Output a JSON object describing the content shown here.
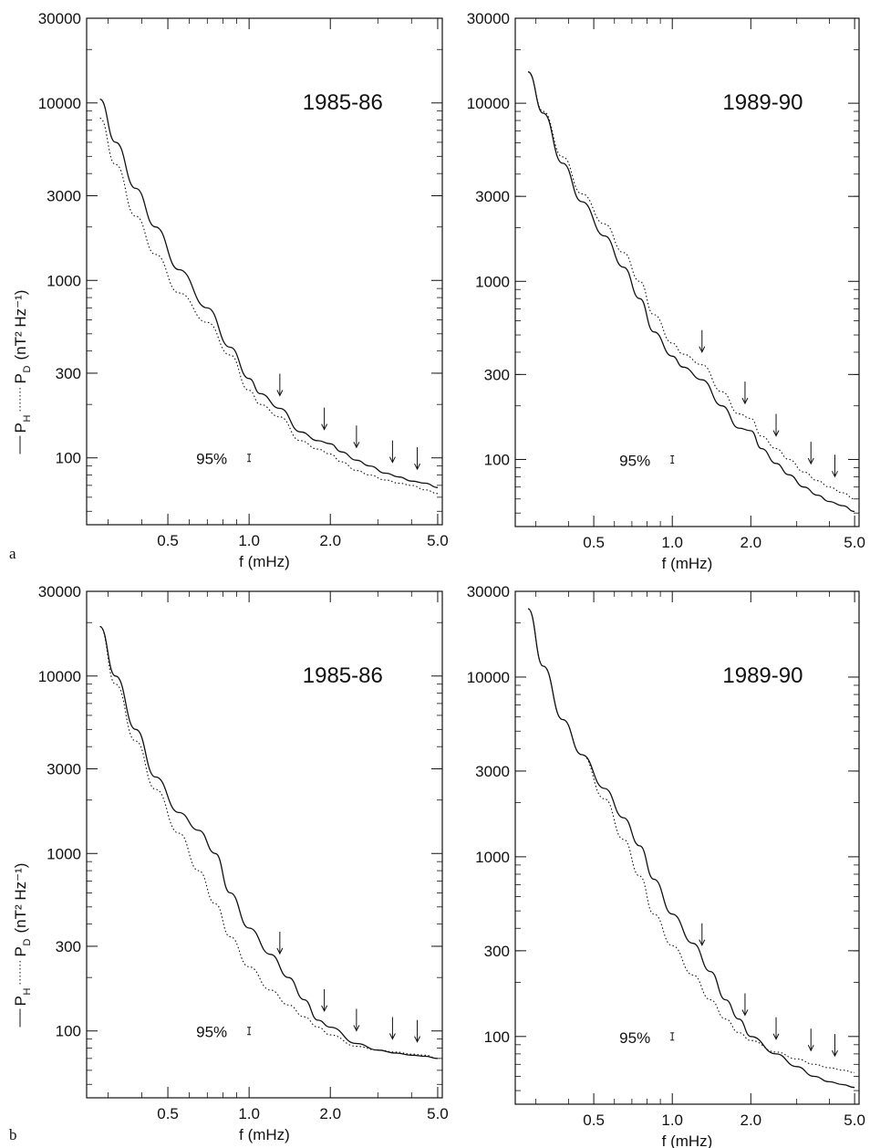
{
  "panel_labels": [
    "a",
    "b"
  ],
  "confidence_label": "95%",
  "chart_data": [
    {
      "type": "line",
      "title": "1985-86",
      "xlabel": "f (mHz)",
      "ylabel": {
        "h": "P",
        "h_sub": "H",
        "d": "P",
        "d_sub": "D",
        "unit": "(nT² Hz⁻¹)"
      },
      "xscale": "log",
      "yscale": "log",
      "xlim": [
        0.25,
        5.2
      ],
      "ylim": [
        42,
        30000
      ],
      "xticks": [
        0.5,
        1.0,
        2.0,
        5.0
      ],
      "xtick_labels": [
        "0.5",
        "1.0",
        "2.0",
        "5.0"
      ],
      "yticks": [
        100,
        300,
        1000,
        3000,
        10000,
        30000
      ],
      "ytick_labels": [
        "100",
        "300",
        "1000",
        "3000",
        "10000",
        "30000"
      ],
      "series": [
        {
          "style": "solid",
          "x": [
            0.28,
            0.32,
            0.38,
            0.45,
            0.55,
            0.7,
            0.85,
            1.0,
            1.1,
            1.3,
            1.55,
            1.8,
            2.0,
            2.2,
            2.5,
            2.8,
            3.2,
            3.6,
            4.0,
            4.5,
            5.0
          ],
          "y": [
            10500,
            6000,
            3300,
            2000,
            1150,
            700,
            420,
            280,
            230,
            190,
            140,
            125,
            120,
            108,
            97,
            90,
            82,
            78,
            74,
            72,
            68
          ]
        },
        {
          "style": "dotted",
          "x": [
            0.28,
            0.32,
            0.38,
            0.45,
            0.55,
            0.7,
            0.85,
            1.0,
            1.1,
            1.3,
            1.55,
            1.8,
            2.0,
            2.2,
            2.5,
            2.8,
            3.2,
            3.6,
            4.0,
            4.5,
            5.0
          ],
          "y": [
            8200,
            4500,
            2300,
            1400,
            850,
            580,
            380,
            240,
            200,
            170,
            125,
            112,
            105,
            95,
            85,
            80,
            75,
            72,
            70,
            66,
            63
          ]
        }
      ],
      "arrows_x": [
        1.3,
        1.9,
        2.5,
        3.4,
        4.2
      ],
      "ci": {
        "x": 1.0,
        "y": 100
      }
    },
    {
      "type": "line",
      "title": "1989-90",
      "xlabel": "f (mHz)",
      "xscale": "log",
      "yscale": "log",
      "xlim": [
        0.25,
        5.2
      ],
      "ylim": [
        42,
        30000
      ],
      "xticks": [
        0.5,
        1.0,
        2.0,
        5.0
      ],
      "xtick_labels": [
        "0.5",
        "1.0",
        "2.0",
        "5.0"
      ],
      "yticks": [
        100,
        300,
        1000,
        3000,
        10000,
        30000
      ],
      "ytick_labels": [
        "100",
        "300",
        "1000",
        "3000",
        "10000",
        "30000"
      ],
      "series": [
        {
          "style": "solid",
          "x": [
            0.28,
            0.32,
            0.38,
            0.45,
            0.55,
            0.65,
            0.75,
            0.85,
            1.0,
            1.1,
            1.3,
            1.55,
            1.8,
            2.0,
            2.2,
            2.5,
            2.8,
            3.2,
            3.6,
            4.0,
            4.5,
            5.0
          ],
          "y": [
            15000,
            8800,
            4600,
            2800,
            1800,
            1200,
            800,
            520,
            380,
            330,
            280,
            200,
            150,
            145,
            115,
            95,
            82,
            70,
            63,
            58,
            55,
            51
          ]
        },
        {
          "style": "dotted",
          "x": [
            0.28,
            0.32,
            0.38,
            0.45,
            0.55,
            0.65,
            0.75,
            0.85,
            1.0,
            1.1,
            1.3,
            1.55,
            1.8,
            2.0,
            2.2,
            2.5,
            2.8,
            3.2,
            3.6,
            4.0,
            4.5,
            5.0
          ],
          "y": [
            15000,
            9000,
            5000,
            3100,
            2100,
            1450,
            1000,
            650,
            450,
            390,
            340,
            240,
            180,
            170,
            135,
            115,
            100,
            85,
            76,
            70,
            65,
            60
          ]
        }
      ],
      "arrows_x": [
        1.3,
        1.9,
        2.5,
        3.4,
        4.2
      ],
      "ci": {
        "x": 1.0,
        "y": 100
      }
    },
    {
      "type": "line",
      "title": "1985-86",
      "xlabel": "f (mHz)",
      "ylabel": {
        "h": "P",
        "h_sub": "H",
        "d": "P",
        "d_sub": "D",
        "unit": "(nT² Hz⁻¹)"
      },
      "xscale": "log",
      "yscale": "log",
      "xlim": [
        0.25,
        5.2
      ],
      "ylim": [
        42,
        30000
      ],
      "xticks": [
        0.5,
        1.0,
        2.0,
        5.0
      ],
      "xtick_labels": [
        "0.5",
        "1.0",
        "2.0",
        "5.0"
      ],
      "yticks": [
        100,
        300,
        1000,
        3000,
        10000,
        30000
      ],
      "ytick_labels": [
        "100",
        "300",
        "1000",
        "3000",
        "10000",
        "30000"
      ],
      "series": [
        {
          "style": "solid",
          "x": [
            0.28,
            0.32,
            0.38,
            0.45,
            0.55,
            0.65,
            0.75,
            0.85,
            1.0,
            1.2,
            1.4,
            1.6,
            1.8,
            2.0,
            2.5,
            3.0,
            3.5,
            4.0,
            4.5,
            5.0
          ],
          "y": [
            19000,
            10000,
            5000,
            2700,
            1700,
            1350,
            1000,
            600,
            380,
            270,
            200,
            150,
            115,
            105,
            85,
            78,
            75,
            73,
            72,
            70
          ]
        },
        {
          "style": "dotted",
          "x": [
            0.28,
            0.32,
            0.38,
            0.45,
            0.55,
            0.65,
            0.75,
            0.85,
            1.0,
            1.2,
            1.4,
            1.6,
            1.8,
            2.0,
            2.5,
            3.0,
            3.5,
            4.0,
            4.5,
            5.0
          ],
          "y": [
            19000,
            9000,
            4300,
            2300,
            1300,
            800,
            520,
            340,
            230,
            170,
            140,
            120,
            105,
            95,
            82,
            78,
            76,
            74,
            73,
            70
          ]
        }
      ],
      "arrows_x": [
        1.3,
        1.9,
        2.5,
        3.4,
        4.2
      ],
      "ci": {
        "x": 1.0,
        "y": 100
      }
    },
    {
      "type": "line",
      "title": "1989-90",
      "xlabel": "f (mHz)",
      "xscale": "log",
      "yscale": "log",
      "xlim": [
        0.25,
        5.2
      ],
      "ylim": [
        42,
        30000
      ],
      "xticks": [
        0.5,
        1.0,
        2.0,
        5.0
      ],
      "xtick_labels": [
        "0.5",
        "1.0",
        "2.0",
        "5.0"
      ],
      "yticks": [
        100,
        300,
        1000,
        3000,
        10000,
        30000
      ],
      "ytick_labels": [
        "100",
        "300",
        "1000",
        "3000",
        "10000",
        "30000"
      ],
      "series": [
        {
          "style": "solid",
          "x": [
            0.28,
            0.32,
            0.38,
            0.45,
            0.55,
            0.65,
            0.75,
            0.85,
            1.0,
            1.2,
            1.4,
            1.6,
            1.8,
            2.0,
            2.5,
            3.0,
            3.5,
            4.0,
            4.5,
            5.0
          ],
          "y": [
            24000,
            11500,
            5800,
            3700,
            2400,
            1650,
            1150,
            750,
            480,
            330,
            230,
            160,
            125,
            100,
            80,
            68,
            60,
            56,
            54,
            52
          ]
        },
        {
          "style": "dotted",
          "x": [
            0.28,
            0.32,
            0.38,
            0.45,
            0.55,
            0.65,
            0.75,
            0.85,
            1.0,
            1.2,
            1.4,
            1.6,
            1.8,
            2.0,
            2.5,
            3.0,
            3.5,
            4.0,
            4.5,
            5.0
          ],
          "y": [
            24000,
            11500,
            5800,
            3700,
            2100,
            1250,
            780,
            480,
            320,
            220,
            160,
            125,
            105,
            95,
            82,
            75,
            70,
            67,
            65,
            63
          ]
        }
      ],
      "arrows_x": [
        1.3,
        1.9,
        2.5,
        3.4,
        4.2
      ],
      "ci": {
        "x": 1.0,
        "y": 100
      }
    }
  ]
}
